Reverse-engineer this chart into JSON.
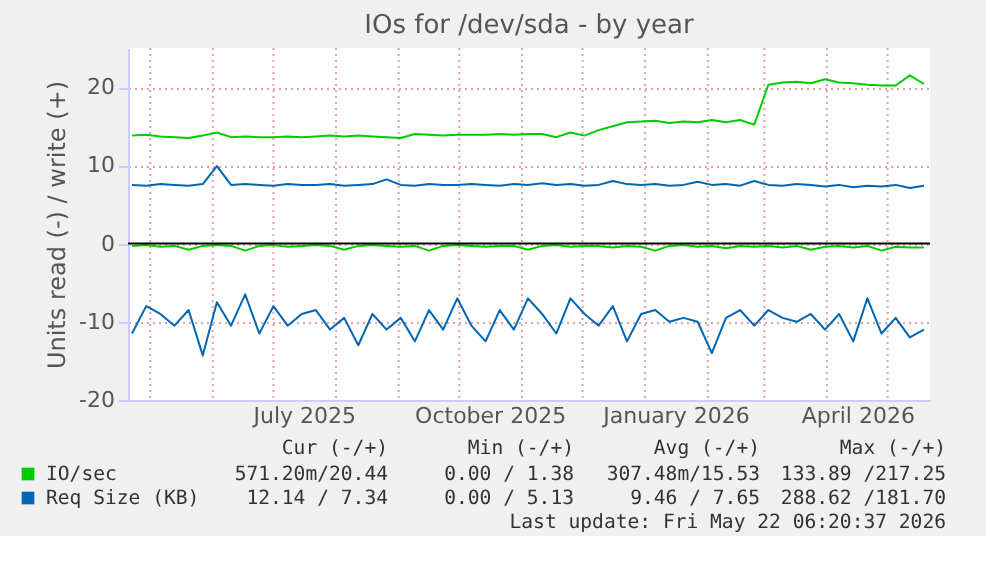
{
  "chart_data": {
    "type": "line",
    "title": "IOs for /dev/sda - by year",
    "ylabel": "Units read (-) / write (+)",
    "x": [
      "2025-04-22",
      "2025-04-29",
      "2025-05-06",
      "2025-05-13",
      "2025-05-20",
      "2025-05-27",
      "2025-06-03",
      "2025-06-10",
      "2025-06-17",
      "2025-06-24",
      "2025-07-01",
      "2025-07-08",
      "2025-07-15",
      "2025-07-22",
      "2025-07-29",
      "2025-08-05",
      "2025-08-12",
      "2025-08-19",
      "2025-08-26",
      "2025-09-02",
      "2025-09-09",
      "2025-09-16",
      "2025-09-23",
      "2025-09-30",
      "2025-10-07",
      "2025-10-14",
      "2025-10-21",
      "2025-10-28",
      "2025-11-04",
      "2025-11-11",
      "2025-11-18",
      "2025-11-25",
      "2025-12-02",
      "2025-12-09",
      "2025-12-16",
      "2025-12-23",
      "2025-12-30",
      "2026-01-06",
      "2026-01-13",
      "2026-01-20",
      "2026-01-27",
      "2026-02-03",
      "2026-02-10",
      "2026-02-17",
      "2026-02-24",
      "2026-03-03",
      "2026-03-10",
      "2026-03-17",
      "2026-03-24",
      "2026-03-31",
      "2026-04-07",
      "2026-04-14",
      "2026-04-21",
      "2026-04-28",
      "2026-05-05",
      "2026-05-12",
      "2026-05-19"
    ],
    "series": [
      {
        "name": "IO/sec",
        "color": "#00cc00",
        "values": [
          13.8,
          13.9,
          13.7,
          13.6,
          13.5,
          13.8,
          14.2,
          13.6,
          13.7,
          13.6,
          13.6,
          13.7,
          13.6,
          13.7,
          13.8,
          13.7,
          13.8,
          13.7,
          13.6,
          13.5,
          14.0,
          13.9,
          13.8,
          13.9,
          13.9,
          13.9,
          14.0,
          13.9,
          14.0,
          14.0,
          13.6,
          14.2,
          13.8,
          14.5,
          15.0,
          15.5,
          15.6,
          15.7,
          15.4,
          15.6,
          15.5,
          15.8,
          15.5,
          15.8,
          15.2,
          20.3,
          20.6,
          20.7,
          20.5,
          21.0,
          20.6,
          20.5,
          20.3,
          20.2,
          20.2,
          21.5,
          20.4
        ]
      },
      {
        "color": "#00cc00",
        "values": [
          -0.3,
          -0.2,
          -0.4,
          -0.3,
          -0.8,
          -0.3,
          -0.2,
          -0.3,
          -0.9,
          -0.3,
          -0.2,
          -0.4,
          -0.3,
          -0.2,
          -0.3,
          -0.8,
          -0.3,
          -0.2,
          -0.3,
          -0.4,
          -0.3,
          -0.9,
          -0.3,
          -0.2,
          -0.3,
          -0.4,
          -0.3,
          -0.3,
          -0.8,
          -0.3,
          -0.2,
          -0.4,
          -0.3,
          -0.3,
          -0.5,
          -0.3,
          -0.4,
          -0.9,
          -0.3,
          -0.2,
          -0.4,
          -0.3,
          -0.6,
          -0.3,
          -0.4,
          -0.3,
          -0.5,
          -0.3,
          -0.8,
          -0.4,
          -0.3,
          -0.5,
          -0.3,
          -0.9,
          -0.4,
          -0.5,
          -0.5
        ]
      },
      {
        "name": "Req Size (KB)",
        "color": "#0066b3",
        "values": [
          7.5,
          7.4,
          7.6,
          7.5,
          7.4,
          7.6,
          9.9,
          7.5,
          7.6,
          7.5,
          7.4,
          7.6,
          7.5,
          7.5,
          7.6,
          7.4,
          7.5,
          7.6,
          8.2,
          7.5,
          7.4,
          7.6,
          7.5,
          7.5,
          7.6,
          7.5,
          7.4,
          7.6,
          7.5,
          7.7,
          7.5,
          7.6,
          7.4,
          7.5,
          8.0,
          7.6,
          7.5,
          7.6,
          7.4,
          7.5,
          7.9,
          7.5,
          7.6,
          7.4,
          8.0,
          7.5,
          7.4,
          7.6,
          7.5,
          7.3,
          7.5,
          7.2,
          7.4,
          7.3,
          7.5,
          7.1,
          7.4
        ]
      },
      {
        "color": "#0066b3",
        "values": [
          -11.5,
          -8.0,
          -9.0,
          -10.5,
          -8.5,
          -14.3,
          -7.5,
          -10.5,
          -6.5,
          -11.5,
          -8.0,
          -10.5,
          -9.0,
          -8.5,
          -11.0,
          -9.5,
          -13.0,
          -9.0,
          -11.0,
          -9.5,
          -12.5,
          -8.5,
          -11.0,
          -7.0,
          -10.5,
          -12.5,
          -8.5,
          -11.0,
          -7.0,
          -9.0,
          -11.5,
          -7.0,
          -9.0,
          -10.5,
          -8.0,
          -12.5,
          -9.0,
          -8.5,
          -10.0,
          -9.5,
          -10.0,
          -14.0,
          -9.5,
          -8.5,
          -10.5,
          -8.5,
          -9.5,
          -10.0,
          -9.0,
          -11.0,
          -9.0,
          -12.5,
          -7.0,
          -11.5,
          -9.5,
          -12.0,
          -11.0
        ]
      }
    ],
    "ylim": [
      -20,
      25
    ],
    "yticks": [
      -20,
      -10,
      0,
      10,
      20
    ],
    "xlim": [
      "2025-04-20",
      "2026-05-22"
    ],
    "xticks": [
      {
        "value": "2025-05-01",
        "label": null
      },
      {
        "value": "2025-06-01",
        "label": null
      },
      {
        "value": "2025-07-01",
        "label": null
      },
      {
        "value": "2025-07-16",
        "label": "July 2025"
      },
      {
        "value": "2025-08-01",
        "label": null
      },
      {
        "value": "2025-09-01",
        "label": null
      },
      {
        "value": "2025-10-01",
        "label": null
      },
      {
        "value": "2025-10-16",
        "label": "October 2025"
      },
      {
        "value": "2025-11-01",
        "label": null
      },
      {
        "value": "2025-12-01",
        "label": null
      },
      {
        "value": "2026-01-01",
        "label": null
      },
      {
        "value": "2026-01-16",
        "label": "January 2026"
      },
      {
        "value": "2026-02-01",
        "label": null
      },
      {
        "value": "2026-03-01",
        "label": null
      },
      {
        "value": "2026-04-01",
        "label": null
      },
      {
        "value": "2026-04-16",
        "label": "April 2026"
      },
      {
        "value": "2026-05-01",
        "label": null
      }
    ],
    "ref_lines": [
      {
        "axis": "y",
        "value": 0,
        "color": "#000000"
      }
    ],
    "grid": true,
    "legend": "bottom",
    "annotations": [
      "Cur (-/+)",
      "Min (-/+)",
      "Avg (-/+)",
      "Max (-/+)",
      "571.20m/20.44",
      "0.00 / 1.38",
      "307.48m/15.53",
      "133.89 /217.25",
      "12.14 / 7.34",
      "0.00 / 5.13",
      "9.46 / 7.65",
      "288.62 /181.70",
      "Last update: Fri May 22 06:20:37 2026"
    ]
  }
}
